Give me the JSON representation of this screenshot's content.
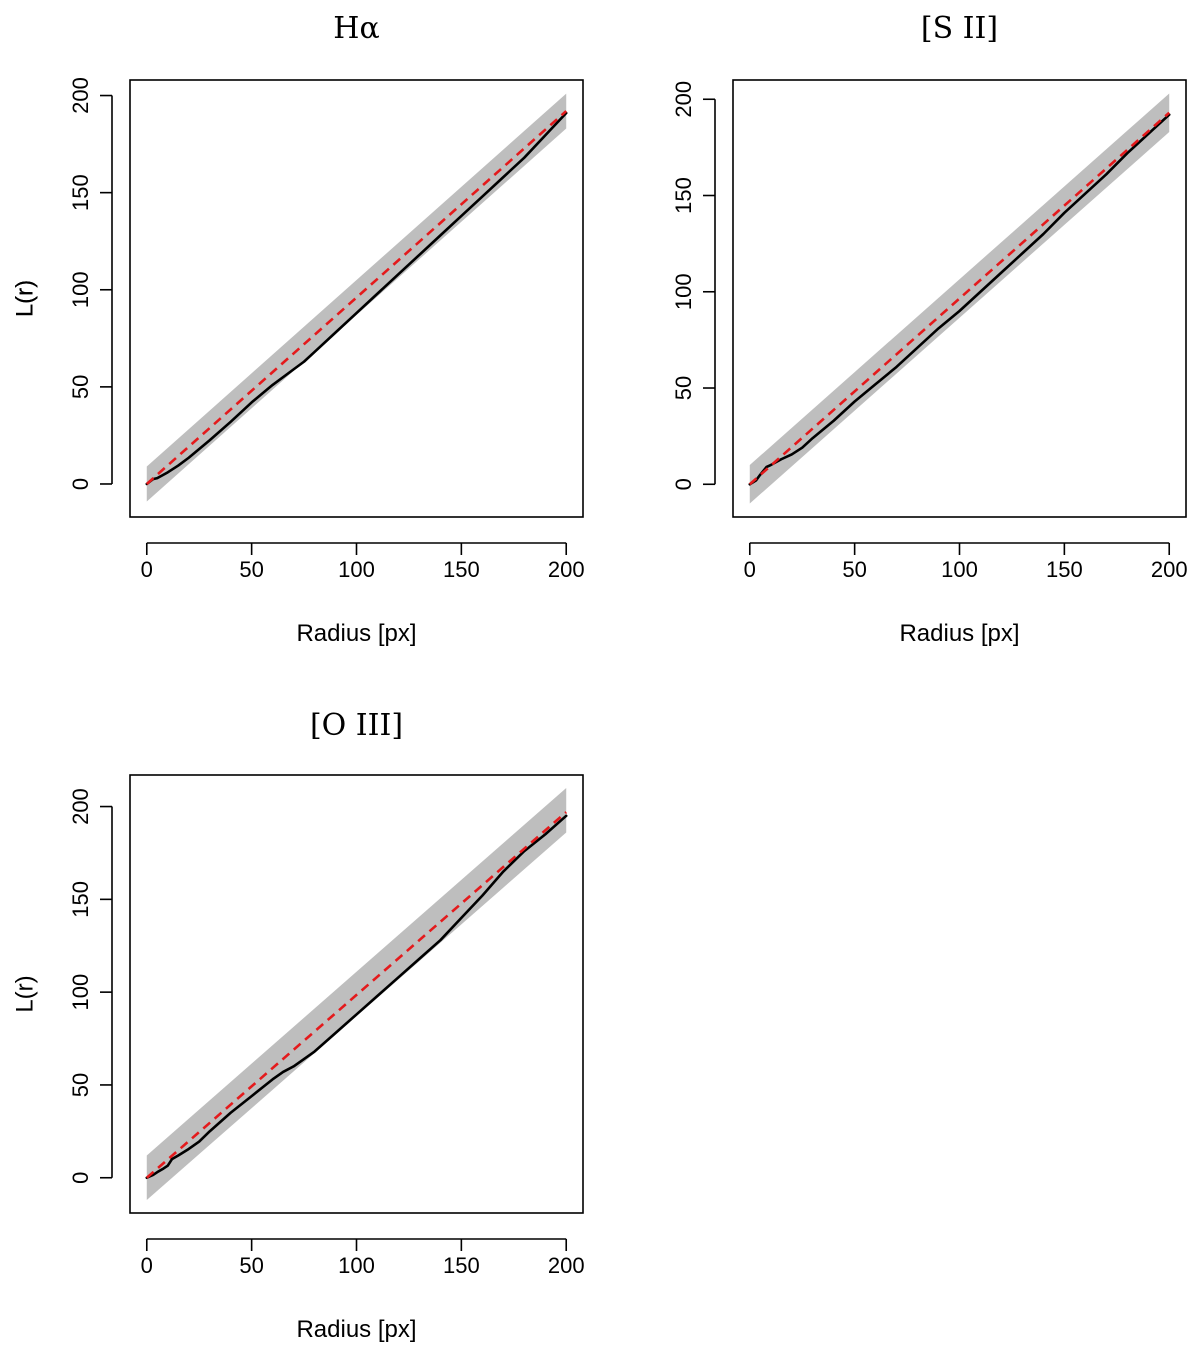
{
  "chart_data": [
    {
      "type": "line",
      "title": "Hα",
      "xlabel": "Radius [px]",
      "ylabel": "L(r)",
      "xlim": [
        -8,
        208
      ],
      "ylim": [
        -17,
        208
      ],
      "x_ticks": [
        0,
        50,
        100,
        150,
        200
      ],
      "y_ticks": [
        0,
        50,
        100,
        150,
        200
      ],
      "grid": false,
      "envelope": {
        "x": [
          0,
          200
        ],
        "lower": [
          -9,
          183
        ],
        "upper": [
          9,
          201
        ],
        "color": "#bebebe"
      },
      "series": [
        {
          "style": "solid",
          "color": "#000000",
          "x": [
            0,
            3,
            5,
            10,
            15,
            20,
            25,
            30,
            40,
            50,
            60,
            70,
            75,
            80,
            90,
            100,
            110,
            120,
            130,
            140,
            150,
            160,
            170,
            180,
            190,
            200
          ],
          "y": [
            0,
            2.5,
            3,
            6,
            9.5,
            13.5,
            18,
            22.5,
            32,
            42,
            51,
            59,
            63,
            68,
            78,
            88,
            98,
            108,
            118,
            128,
            138,
            148,
            158,
            168,
            179.5,
            191
          ]
        },
        {
          "style": "dashed",
          "color": "#e41a1c",
          "x": [
            0,
            200
          ],
          "y": [
            0,
            192
          ]
        }
      ]
    },
    {
      "type": "line",
      "title": "[S II]",
      "xlabel": "Radius [px]",
      "ylabel": "L(r)",
      "xlim": [
        -8,
        208
      ],
      "ylim": [
        -17,
        210
      ],
      "x_ticks": [
        0,
        50,
        100,
        150,
        200
      ],
      "y_ticks": [
        0,
        50,
        100,
        150,
        200
      ],
      "grid": false,
      "envelope": {
        "x": [
          0,
          200
        ],
        "lower": [
          -10,
          183
        ],
        "upper": [
          10,
          203
        ],
        "color": "#bebebe"
      },
      "series": [
        {
          "style": "solid",
          "color": "#000000",
          "x": [
            0,
            3,
            5,
            8,
            10,
            15,
            20,
            25,
            30,
            40,
            50,
            60,
            70,
            80,
            90,
            100,
            110,
            120,
            130,
            140,
            150,
            160,
            170,
            180,
            190,
            200
          ],
          "y": [
            0,
            2,
            5,
            9,
            10,
            13,
            15.5,
            19,
            24,
            33,
            43,
            52,
            61,
            71,
            81,
            90,
            100,
            110,
            120,
            130,
            141,
            151,
            161,
            172,
            182,
            192
          ]
        },
        {
          "style": "dashed",
          "color": "#e41a1c",
          "x": [
            0,
            200
          ],
          "y": [
            0,
            193
          ]
        }
      ]
    },
    {
      "type": "line",
      "title": "[O III]",
      "xlabel": "Radius [px]",
      "ylabel": "L(r)",
      "xlim": [
        -8,
        208
      ],
      "ylim": [
        -19,
        217
      ],
      "x_ticks": [
        0,
        50,
        100,
        150,
        200
      ],
      "y_ticks": [
        0,
        50,
        100,
        150,
        200
      ],
      "grid": false,
      "envelope": {
        "x": [
          0,
          200
        ],
        "lower": [
          -12,
          186
        ],
        "upper": [
          12,
          210
        ],
        "color": "#bebebe"
      },
      "series": [
        {
          "style": "solid",
          "color": "#000000",
          "x": [
            0,
            3,
            5,
            8,
            10,
            12,
            15,
            20,
            25,
            30,
            40,
            50,
            60,
            65,
            70,
            80,
            90,
            100,
            110,
            120,
            130,
            140,
            150,
            160,
            170,
            180,
            190,
            200
          ],
          "y": [
            0,
            1.5,
            3,
            5,
            6.5,
            10,
            12,
            15.5,
            19.5,
            25,
            35,
            44,
            53,
            57,
            60,
            68,
            78,
            88,
            98,
            108,
            118,
            128,
            140,
            152,
            165,
            176,
            185,
            195
          ]
        },
        {
          "style": "dashed",
          "color": "#e41a1c",
          "x": [
            0,
            200
          ],
          "y": [
            0,
            197
          ]
        }
      ]
    }
  ]
}
